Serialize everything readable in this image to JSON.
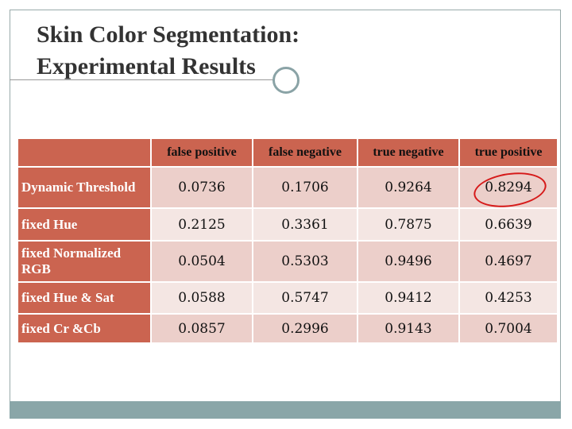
{
  "header": {
    "title": [
      "Skin Color Segmentation:",
      "Experimental Results"
    ]
  },
  "table": {
    "columns": [
      "false positive",
      "false negative",
      "true negative",
      "true positive"
    ],
    "rows": [
      {
        "label": "Dynamic Threshold",
        "values": [
          "0.0736",
          "0.1706",
          "0.9264",
          "0.8294"
        ]
      },
      {
        "label": "fixed Hue",
        "values": [
          "0.2125",
          "0.3361",
          "0.7875",
          "0.6639"
        ]
      },
      {
        "label": "fixed Normalized RGB",
        "values": [
          "0.0504",
          "0.5303",
          "0.9496",
          "0.4697"
        ]
      },
      {
        "label": "fixed Hue & Sat",
        "values": [
          "0.0588",
          "0.5747",
          "0.9412",
          "0.4253"
        ]
      },
      {
        "label": "fixed Cr &Cb",
        "values": [
          "0.0857",
          "0.2996",
          "0.9143",
          "0.7004"
        ]
      }
    ]
  }
}
